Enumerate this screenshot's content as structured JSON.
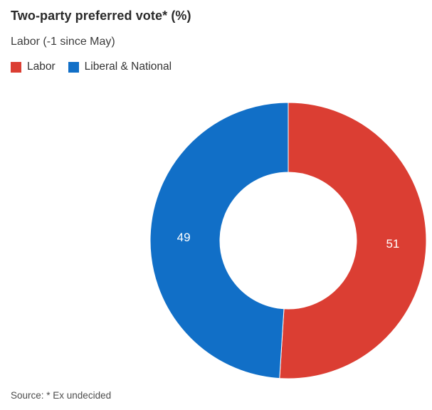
{
  "header": {
    "title": "Two-party preferred vote* (%)",
    "subtitle": "Labor (-1 since May)"
  },
  "legend": {
    "items": [
      {
        "label": "Labor",
        "color": "#db3e33"
      },
      {
        "label": "Liberal & National",
        "color": "#116fc7"
      }
    ]
  },
  "chart_data": {
    "type": "pie",
    "subtype": "donut",
    "title": "Two-party preferred vote* (%)",
    "subtitle": "Labor (-1 since May)",
    "units": "%",
    "categories": [
      "Labor",
      "Liberal & National"
    ],
    "values": [
      51,
      49
    ],
    "colors": [
      "#db3e33",
      "#116fc7"
    ],
    "data_labels": [
      "51",
      "49"
    ],
    "label_color": "#ffffff",
    "start_angle_deg": 0,
    "direction": "clockwise",
    "inner_radius_ratio": 0.495,
    "legend_position": "top-left",
    "slice_border_color": "#ffffff"
  },
  "footer": {
    "source": "Source: * Ex undecided"
  }
}
